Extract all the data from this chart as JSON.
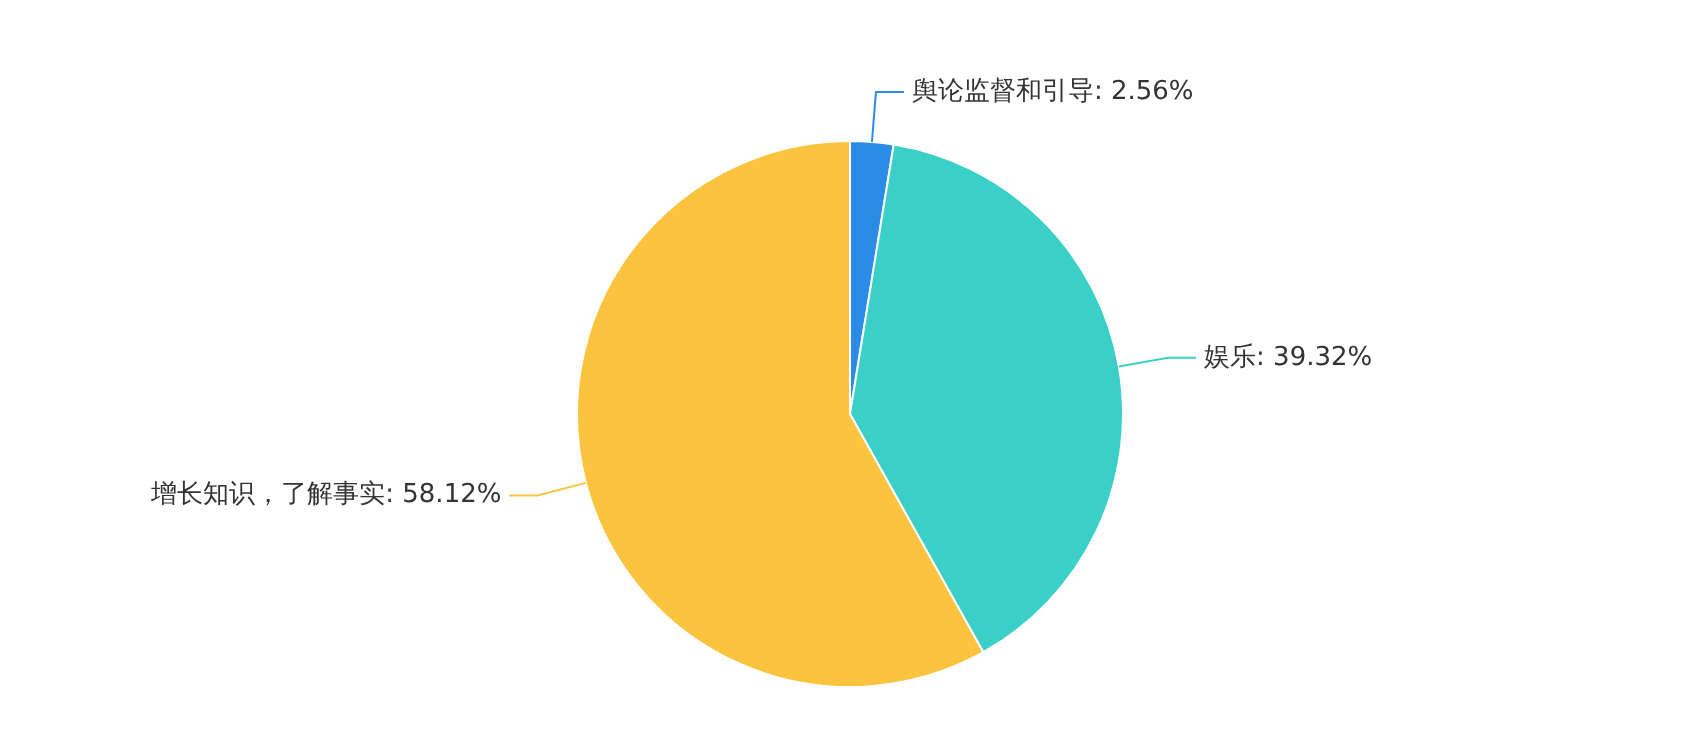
{
  "chart_data": {
    "type": "pie",
    "categories": [
      "舆论监督和引导",
      "娱乐",
      "增长知识，了解事实"
    ],
    "values": [
      2.56,
      39.32,
      58.12
    ],
    "value_labels": [
      "2.56%",
      "39.32%",
      "58.12%"
    ],
    "colors": [
      "#2b8ce8",
      "#3ad0c8",
      "#fcc43e"
    ]
  }
}
